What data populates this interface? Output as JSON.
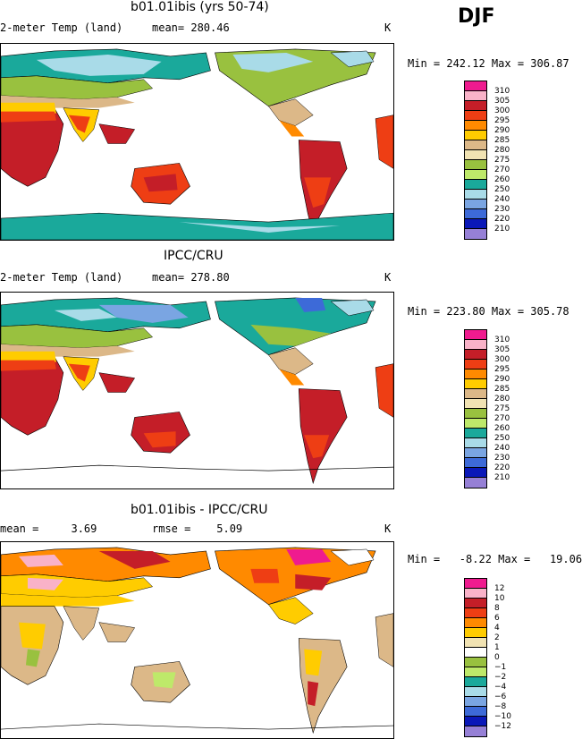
{
  "header": {
    "season": "DJF"
  },
  "panels": [
    {
      "title": "b01.01ibis (yrs 50-74)",
      "left_label": "2-meter Temp (land)",
      "mean_text": "mean= 280.46",
      "units": "K",
      "minmax": "Min = 242.12 Max = 306.87",
      "colorbar": {
        "labels": [
          "310",
          "305",
          "300",
          "295",
          "290",
          "285",
          "280",
          "275",
          "270",
          "260",
          "250",
          "240",
          "230",
          "220",
          "210"
        ],
        "colors": [
          "#ef1b8f",
          "#f9b2c8",
          "#c41e28",
          "#ee3e14",
          "#ff8a00",
          "#ffcc00",
          "#dcb888",
          "#f1e3b3",
          "#99c13f",
          "#bee96a",
          "#1aa99b",
          "#a9dbe8",
          "#7aa5e2",
          "#3d6ad8",
          "#0a18b8",
          "#9680d6"
        ]
      }
    },
    {
      "title": "IPCC/CRU",
      "left_label": "2-meter Temp (land)",
      "mean_text": "mean= 278.80",
      "units": "K",
      "minmax": "Min = 223.80 Max = 305.78",
      "colorbar": {
        "labels": [
          "310",
          "305",
          "300",
          "295",
          "290",
          "285",
          "280",
          "275",
          "270",
          "260",
          "250",
          "240",
          "230",
          "220",
          "210"
        ],
        "colors": [
          "#ef1b8f",
          "#f9b2c8",
          "#c41e28",
          "#ee3e14",
          "#ff8a00",
          "#ffcc00",
          "#dcb888",
          "#f1e3b3",
          "#99c13f",
          "#bee96a",
          "#1aa99b",
          "#a9dbe8",
          "#7aa5e2",
          "#3d6ad8",
          "#0a18b8",
          "#9680d6"
        ]
      }
    },
    {
      "title": "b01.01ibis - IPCC/CRU",
      "left_label": "mean =     3.69",
      "mean_text": "rmse =    5.09",
      "units": "K",
      "minmax": "Min =   -8.22 Max =   19.06",
      "colorbar": {
        "labels": [
          "12",
          "10",
          "8",
          "6",
          "4",
          "2",
          "1",
          "0",
          "−1",
          "−2",
          "−4",
          "−6",
          "−8",
          "−10",
          "−12"
        ],
        "colors": [
          "#ef1b8f",
          "#f9b2c8",
          "#c41e28",
          "#ee3e14",
          "#ff8a00",
          "#ffcc00",
          "#f1e3b3",
          "#ffffff",
          "#99c13f",
          "#bee96a",
          "#1aa99b",
          "#a9dbe8",
          "#7aa5e2",
          "#3d6ad8",
          "#0a18b8",
          "#9680d6"
        ]
      }
    }
  ]
}
